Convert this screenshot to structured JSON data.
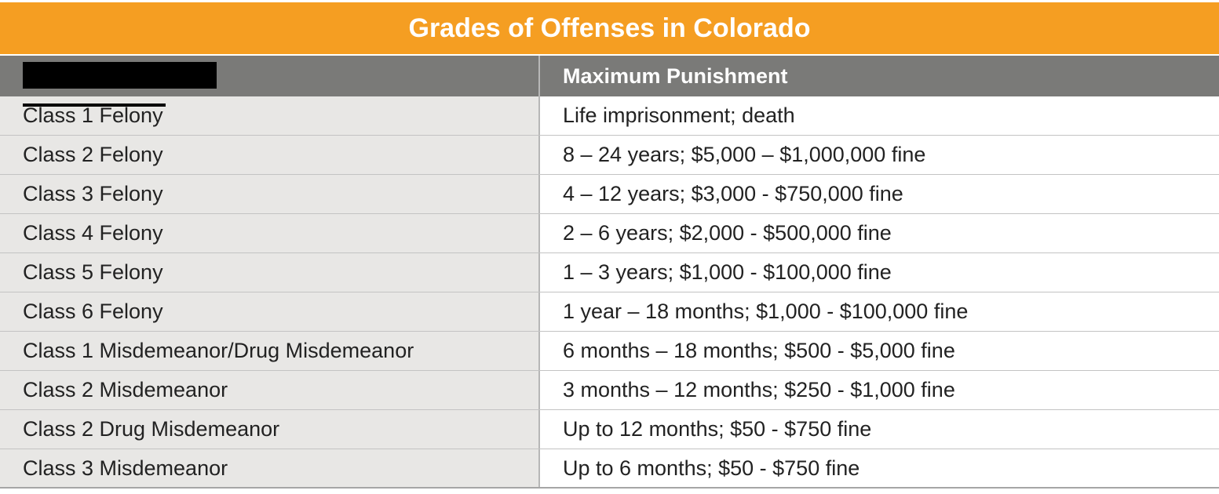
{
  "title": "Grades of Offenses in Colorado",
  "table": {
    "header": {
      "left": "",
      "right": "Maximum Punishment"
    },
    "rows": [
      {
        "offense": "Class 1 Felony",
        "punishment": "Life imprisonment; death"
      },
      {
        "offense": "Class 2 Felony",
        "punishment": "8 – 24 years; $5,000 – $1,000,000 fine"
      },
      {
        "offense": "Class 3 Felony",
        "punishment": "4 – 12 years; $3,000 - $750,000 fine"
      },
      {
        "offense": "Class 4 Felony",
        "punishment": "2 – 6 years; $2,000 - $500,000 fine"
      },
      {
        "offense": "Class 5 Felony",
        "punishment": "1 – 3 years; $1,000 - $100,000 fine"
      },
      {
        "offense": "Class 6 Felony",
        "punishment": "1 year – 18 months; $1,000 - $100,000 fine"
      },
      {
        "offense": "Class 1 Misdemeanor/Drug Misdemeanor",
        "punishment": "6 months – 18 months; $500 - $5,000 fine"
      },
      {
        "offense": "Class 2 Misdemeanor",
        "punishment": "3 months – 12 months; $250 - $1,000 fine"
      },
      {
        "offense": "Class 2 Drug Misdemeanor",
        "punishment": "Up to 12 months; $50 - $750 fine"
      },
      {
        "offense": "Class 3 Misdemeanor",
        "punishment": "Up to 6 months; $50 - $750 fine"
      }
    ]
  },
  "colors": {
    "title_bg": "#f59e22",
    "header_bg": "#7a7a78",
    "left_col_bg": "#e8e7e5"
  }
}
